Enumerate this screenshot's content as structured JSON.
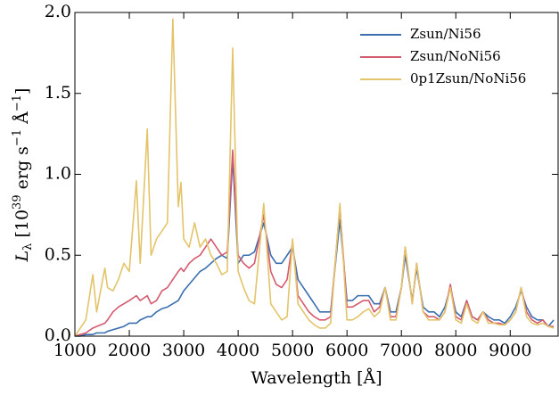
{
  "chart_data": {
    "type": "line",
    "x_label": "Wavelength [Å]",
    "y_label": [
      "L",
      "λ",
      " [10",
      "39",
      " erg s",
      "−1",
      " Å",
      "−1",
      "]"
    ],
    "x": [
      1000,
      1100,
      1200,
      1330,
      1400,
      1550,
      1600,
      1700,
      1800,
      1900,
      2000,
      2130,
      2200,
      2330,
      2400,
      2500,
      2600,
      2700,
      2800,
      2900,
      2950,
      3000,
      3100,
      3200,
      3300,
      3400,
      3500,
      3600,
      3700,
      3800,
      3900,
      4000,
      4100,
      4200,
      4300,
      4470,
      4600,
      4700,
      4800,
      4900,
      5000,
      5100,
      5200,
      5300,
      5400,
      5500,
      5600,
      5700,
      5870,
      6000,
      6100,
      6200,
      6300,
      6400,
      6500,
      6600,
      6700,
      6800,
      6900,
      7000,
      7070,
      7200,
      7280,
      7400,
      7500,
      7600,
      7700,
      7800,
      7900,
      8000,
      8100,
      8200,
      8300,
      8400,
      8500,
      8600,
      8700,
      8800,
      8900,
      9000,
      9100,
      9200,
      9300,
      9400,
      9500,
      9600,
      9700,
      9800
    ],
    "series": [
      {
        "name": "Zsun/Ni56",
        "color": "#3a6fb0",
        "values": [
          0,
          0,
          0.01,
          0.01,
          0.02,
          0.02,
          0.03,
          0.04,
          0.05,
          0.06,
          0.08,
          0.08,
          0.1,
          0.12,
          0.12,
          0.15,
          0.17,
          0.18,
          0.2,
          0.22,
          0.25,
          0.28,
          0.32,
          0.36,
          0.4,
          0.42,
          0.45,
          0.48,
          0.5,
          0.48,
          1.1,
          0.45,
          0.5,
          0.5,
          0.52,
          0.7,
          0.5,
          0.45,
          0.45,
          0.5,
          0.55,
          0.35,
          0.3,
          0.25,
          0.2,
          0.15,
          0.15,
          0.15,
          0.72,
          0.22,
          0.22,
          0.25,
          0.25,
          0.25,
          0.2,
          0.2,
          0.3,
          0.15,
          0.15,
          0.3,
          0.5,
          0.22,
          0.42,
          0.18,
          0.15,
          0.15,
          0.12,
          0.18,
          0.3,
          0.15,
          0.12,
          0.22,
          0.12,
          0.1,
          0.15,
          0.12,
          0.1,
          0.1,
          0.08,
          0.12,
          0.18,
          0.28,
          0.18,
          0.12,
          0.1,
          0.1,
          0.06,
          0.1
        ]
      },
      {
        "name": "Zsun/NoNi56",
        "color": "#d45a6e",
        "values": [
          0,
          0.01,
          0.02,
          0.05,
          0.06,
          0.08,
          0.1,
          0.15,
          0.18,
          0.2,
          0.22,
          0.25,
          0.22,
          0.25,
          0.2,
          0.22,
          0.28,
          0.3,
          0.35,
          0.4,
          0.42,
          0.4,
          0.45,
          0.48,
          0.5,
          0.55,
          0.6,
          0.55,
          0.5,
          0.52,
          1.15,
          0.5,
          0.45,
          0.42,
          0.45,
          0.75,
          0.4,
          0.32,
          0.3,
          0.35,
          0.58,
          0.25,
          0.2,
          0.15,
          0.12,
          0.1,
          0.1,
          0.12,
          0.8,
          0.18,
          0.18,
          0.2,
          0.22,
          0.22,
          0.15,
          0.18,
          0.3,
          0.12,
          0.12,
          0.3,
          0.55,
          0.2,
          0.45,
          0.15,
          0.12,
          0.12,
          0.1,
          0.15,
          0.32,
          0.12,
          0.1,
          0.22,
          0.12,
          0.1,
          0.15,
          0.1,
          0.08,
          0.08,
          0.07,
          0.1,
          0.15,
          0.3,
          0.15,
          0.1,
          0.08,
          0.1,
          0.06,
          0.06
        ]
      },
      {
        "name": "0p1Zsun/NoNi56",
        "color": "#e3c46a",
        "values": [
          0,
          0.05,
          0.1,
          0.38,
          0.15,
          0.42,
          0.3,
          0.28,
          0.35,
          0.45,
          0.4,
          0.96,
          0.45,
          1.28,
          0.5,
          0.6,
          0.65,
          0.7,
          1.96,
          0.8,
          0.95,
          0.6,
          0.55,
          0.7,
          0.55,
          0.6,
          0.5,
          0.45,
          0.38,
          0.4,
          1.78,
          0.4,
          0.3,
          0.22,
          0.2,
          0.82,
          0.2,
          0.15,
          0.1,
          0.12,
          0.6,
          0.2,
          0.15,
          0.1,
          0.07,
          0.05,
          0.05,
          0.08,
          0.82,
          0.1,
          0.1,
          0.12,
          0.15,
          0.17,
          0.12,
          0.15,
          0.3,
          0.1,
          0.1,
          0.3,
          0.55,
          0.2,
          0.45,
          0.15,
          0.1,
          0.1,
          0.1,
          0.15,
          0.3,
          0.1,
          0.08,
          0.2,
          0.1,
          0.08,
          0.15,
          0.08,
          0.08,
          0.07,
          0.07,
          0.1,
          0.15,
          0.3,
          0.12,
          0.08,
          0.07,
          0.08,
          0.06,
          0.05
        ]
      }
    ],
    "xlim": [
      1000,
      9880
    ],
    "ylim": [
      0,
      2.0
    ],
    "xticks": [
      1000,
      2000,
      3000,
      4000,
      5000,
      6000,
      7000,
      8000,
      9000
    ],
    "yticks": [
      {
        "value": 0,
        "label": "0.0"
      },
      {
        "value": 0.5,
        "label": "0.5"
      },
      {
        "value": 1,
        "label": "1.0"
      },
      {
        "value": 1.5,
        "label": "1.5"
      },
      {
        "value": 2,
        "label": "2.0"
      }
    ],
    "legend": "upper right",
    "grid": false
  }
}
